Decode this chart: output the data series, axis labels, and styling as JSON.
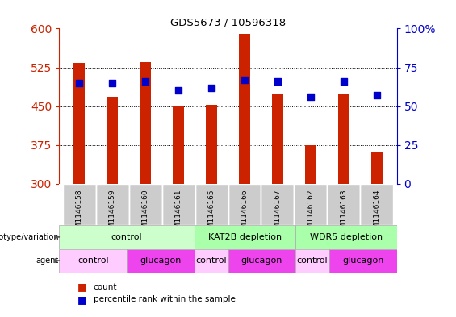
{
  "title": "GDS5673 / 10596318",
  "samples": [
    "GSM1146158",
    "GSM1146159",
    "GSM1146160",
    "GSM1146161",
    "GSM1146165",
    "GSM1146166",
    "GSM1146167",
    "GSM1146162",
    "GSM1146163",
    "GSM1146164"
  ],
  "counts": [
    533,
    468,
    535,
    450,
    453,
    590,
    475,
    375,
    475,
    362
  ],
  "percentiles": [
    65,
    65,
    66,
    60,
    62,
    67,
    66,
    56,
    66,
    57
  ],
  "ylim_left": [
    300,
    600
  ],
  "ylim_right": [
    0,
    100
  ],
  "yticks_left": [
    300,
    375,
    450,
    525,
    600
  ],
  "yticks_right": [
    0,
    25,
    50,
    75,
    100
  ],
  "ytick_right_labels": [
    "0",
    "25",
    "50",
    "75",
    "100%"
  ],
  "bar_color": "#cc2200",
  "dot_color": "#0000cc",
  "bg_color": "#ffffff",
  "genotype_groups": [
    {
      "label": "control",
      "start": 0,
      "end": 4,
      "color": "#ccffcc"
    },
    {
      "label": "KAT2B depletion",
      "start": 4,
      "end": 7,
      "color": "#aaffaa"
    },
    {
      "label": "WDR5 depletion",
      "start": 7,
      "end": 10,
      "color": "#aaffaa"
    }
  ],
  "agent_groups": [
    {
      "label": "control",
      "start": 0,
      "end": 2,
      "color": "#ffccff"
    },
    {
      "label": "glucagon",
      "start": 2,
      "end": 4,
      "color": "#ee44ee"
    },
    {
      "label": "control",
      "start": 4,
      "end": 5,
      "color": "#ffccff"
    },
    {
      "label": "glucagon",
      "start": 5,
      "end": 7,
      "color": "#ee44ee"
    },
    {
      "label": "control",
      "start": 7,
      "end": 8,
      "color": "#ffccff"
    },
    {
      "label": "glucagon",
      "start": 8,
      "end": 10,
      "color": "#ee44ee"
    }
  ],
  "left_tick_color": "#cc2200",
  "right_tick_color": "#0000cc",
  "bar_width": 0.35,
  "dot_size": 30,
  "sample_box_color": "#cccccc",
  "legend_bar_color": "#cc2200",
  "legend_dot_color": "#0000cc"
}
